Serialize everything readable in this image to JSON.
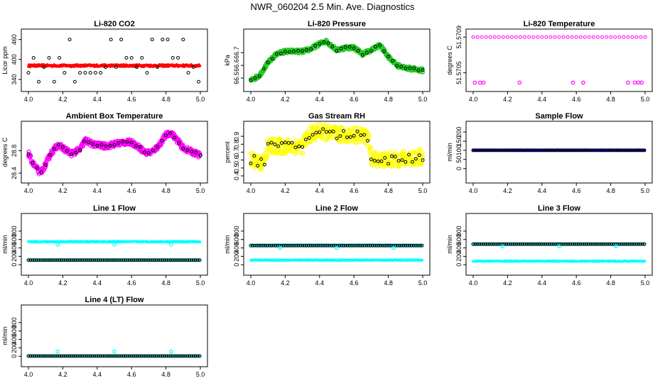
{
  "page": {
    "title": "NWR_060204  2.5 Min. Ave. Diagnostics"
  },
  "colors": {
    "red": "#ff0000",
    "green": "#22cc22",
    "magenta": "#ff00ff",
    "yellow": "#ffff00",
    "blue": "#0000ff",
    "cyan": "#00ffff",
    "black": "#000000"
  },
  "chart_data": [
    {
      "id": "co2",
      "type": "scatter",
      "title": "Li-820 CO2",
      "ylabel": "Licor ppm",
      "xlim": [
        4.0,
        5.0
      ],
      "ylim": [
        325,
        470
      ],
      "xticks": [
        4.0,
        4.2,
        4.4,
        4.6,
        4.8,
        5.0
      ],
      "xtick_labels": [
        "4.0",
        "4.2",
        "4.4",
        "4.6",
        "4.8",
        "5.0"
      ],
      "yticks": [
        340,
        400,
        460
      ],
      "ytick_labels": [
        "340",
        "400",
        "460"
      ],
      "series": [
        {
          "name": "raw",
          "color": "red",
          "style": "band",
          "min": 378,
          "max": 385
        },
        {
          "name": "avg",
          "color": "black",
          "style": "scatter",
          "levels": [
            333,
            360,
            377,
            405,
            460
          ],
          "step": 0.03
        }
      ]
    },
    {
      "id": "pressure",
      "type": "scatter",
      "title": "Li-820 Pressure",
      "ylabel": "kPa",
      "xlim": [
        4.0,
        5.0
      ],
      "ylim": [
        66.45,
        66.83
      ],
      "xticks": [
        4.0,
        4.2,
        4.4,
        4.6,
        4.8,
        5.0
      ],
      "xtick_labels": [
        "4.0",
        "4.2",
        "4.4",
        "4.6",
        "4.8",
        "5.0"
      ],
      "yticks": [
        66.5,
        66.6,
        66.7
      ],
      "ytick_labels": [
        "66.5",
        "66.6",
        "66.7"
      ],
      "series": [
        {
          "name": "raw",
          "color": "green",
          "style": "trace",
          "spread": 0.015,
          "x": [
            4.0,
            4.05,
            4.1,
            4.15,
            4.2,
            4.3,
            4.35,
            4.4,
            4.44,
            4.5,
            4.55,
            4.6,
            4.65,
            4.7,
            4.75,
            4.8,
            4.85,
            4.9,
            4.95,
            5.0
          ],
          "y": [
            66.48,
            66.52,
            66.62,
            66.69,
            66.71,
            66.71,
            66.73,
            66.77,
            66.79,
            66.72,
            66.74,
            66.74,
            66.69,
            66.72,
            66.76,
            66.67,
            66.6,
            66.58,
            66.57,
            66.56
          ]
        },
        {
          "name": "avg",
          "color": "black",
          "style": "sampled",
          "step": 0.025
        }
      ]
    },
    {
      "id": "licor_temp",
      "type": "scatter",
      "title": "Li-820 Temperature",
      "ylabel": "degrees C",
      "xlim": [
        4.0,
        5.0
      ],
      "ylim": [
        51.57037,
        51.57091
      ],
      "xticks": [
        4.0,
        4.2,
        4.4,
        4.6,
        4.8,
        5.0
      ],
      "xtick_labels": [
        "4.0",
        "4.2",
        "4.4",
        "4.6",
        "4.8",
        "5.0"
      ],
      "yticks": [
        51.5705,
        51.5709
      ],
      "ytick_labels": [
        "51.5705",
        "51.5709"
      ],
      "series": [
        {
          "name": "high",
          "color": "magenta",
          "style": "scatter",
          "levels": [
            51.5709
          ],
          "step": 0.025
        },
        {
          "name": "low",
          "color": "magenta",
          "style": "points",
          "y": 51.57039,
          "x": [
            4.01,
            4.04,
            4.06,
            4.27,
            4.58,
            4.64,
            4.9,
            4.94,
            4.96,
            4.98
          ]
        }
      ]
    },
    {
      "id": "box_temp",
      "type": "scatter",
      "title": "Ambient Box Temperature",
      "ylabel": "degrees C",
      "xlim": [
        4.0,
        5.0
      ],
      "ylim": [
        28.35,
        29.2
      ],
      "xticks": [
        4.0,
        4.2,
        4.4,
        4.6,
        4.8,
        5.0
      ],
      "xtick_labels": [
        "4.0",
        "4.2",
        "4.4",
        "4.6",
        "4.8",
        "5.0"
      ],
      "yticks": [
        28.4,
        28.8
      ],
      "ytick_labels": [
        "28.4",
        "28.8"
      ],
      "series": [
        {
          "name": "raw",
          "color": "magenta",
          "style": "trace",
          "spread": 0.05,
          "x": [
            4.0,
            4.03,
            4.07,
            4.1,
            4.13,
            4.17,
            4.2,
            4.25,
            4.3,
            4.33,
            4.37,
            4.45,
            4.5,
            4.55,
            4.6,
            4.65,
            4.68,
            4.72,
            4.76,
            4.8,
            4.83,
            4.87,
            4.9,
            4.95,
            5.0
          ],
          "y": [
            28.75,
            28.55,
            28.4,
            28.55,
            28.75,
            28.9,
            28.85,
            28.75,
            28.82,
            28.99,
            28.92,
            28.88,
            28.92,
            28.95,
            28.95,
            28.85,
            28.76,
            28.78,
            28.9,
            29.08,
            29.12,
            28.97,
            28.85,
            28.78,
            28.72
          ]
        },
        {
          "name": "avg",
          "color": "black",
          "style": "sampled",
          "step": 0.025
        }
      ]
    },
    {
      "id": "rh",
      "type": "scatter",
      "title": "Gas Stream RH",
      "ylabel": "percent",
      "xlim": [
        4.0,
        5.0
      ],
      "ylim": [
        0.4,
        1.0
      ],
      "xticks": [
        4.0,
        4.2,
        4.4,
        4.6,
        4.8,
        5.0
      ],
      "xtick_labels": [
        "4.0",
        "4.2",
        "4.4",
        "4.6",
        "4.8",
        "5.0"
      ],
      "yticks": [
        0.4,
        0.5,
        0.6,
        0.7,
        0.8,
        0.9
      ],
      "ytick_labels": [
        "0.4",
        "0.5",
        "0.6",
        "0.7",
        "0.8",
        "0.9"
      ],
      "series": [
        {
          "name": "raw",
          "color": "yellow",
          "style": "trace",
          "spread": 0.1,
          "x": [
            4.0,
            4.03,
            4.07,
            4.09,
            4.1,
            4.2,
            4.3,
            4.34,
            4.4,
            4.5,
            4.6,
            4.68,
            4.7,
            4.8,
            4.9,
            5.0
          ],
          "y": [
            0.6,
            0.6,
            0.55,
            0.65,
            0.78,
            0.77,
            0.78,
            0.92,
            0.96,
            0.92,
            0.92,
            0.9,
            0.62,
            0.6,
            0.62,
            0.64
          ]
        },
        {
          "name": "avg",
          "color": "black",
          "style": "sampled",
          "step": 0.02,
          "jitter": 0.04
        }
      ]
    },
    {
      "id": "sample_flow",
      "type": "scatter",
      "title": "Sample Flow",
      "ylabel": "ml/min",
      "xlim": [
        4.0,
        5.0
      ],
      "ylim": [
        -40,
        220
      ],
      "xticks": [
        4.0,
        4.2,
        4.4,
        4.6,
        4.8,
        5.0
      ],
      "xtick_labels": [
        "4.0",
        "4.2",
        "4.4",
        "4.6",
        "4.8",
        "5.0"
      ],
      "yticks": [
        0,
        50,
        100,
        150,
        200
      ],
      "ytick_labels": [
        "0",
        "50",
        "100",
        "150",
        "200"
      ],
      "series": [
        {
          "name": "raw",
          "color": "blue",
          "style": "band",
          "min": 98,
          "max": 103
        },
        {
          "name": "avg",
          "color": "black",
          "style": "scatter",
          "levels": [
            100
          ],
          "step": 0.012
        }
      ]
    },
    {
      "id": "line1",
      "type": "scatter",
      "title": "Line 1 Flow",
      "ylabel": "ml/min",
      "xlim": [
        4.0,
        5.0
      ],
      "ylim": [
        -80,
        1050
      ],
      "xticks": [
        4.0,
        4.2,
        4.4,
        4.6,
        4.8,
        5.0
      ],
      "xtick_labels": [
        "4.0",
        "4.2",
        "4.4",
        "4.6",
        "4.8",
        "5.0"
      ],
      "yticks": [
        0,
        200,
        400,
        600,
        800
      ],
      "ytick_labels": [
        "0",
        "200",
        "400",
        "600",
        "800"
      ],
      "series": [
        {
          "name": "raw-high",
          "color": "cyan",
          "style": "band",
          "min": 535,
          "max": 560
        },
        {
          "name": "raw-low",
          "color": "cyan",
          "style": "band",
          "min": 100,
          "max": 120
        },
        {
          "name": "avg",
          "color": "black",
          "style": "scatter",
          "levels": [
            110
          ],
          "step": 0.012
        },
        {
          "name": "outliers",
          "color": "cyan",
          "style": "points",
          "y": 480,
          "x": [
            4.17,
            4.5,
            4.83
          ]
        }
      ]
    },
    {
      "id": "line2",
      "type": "scatter",
      "title": "Line 2 Flow",
      "ylabel": "ml/min",
      "xlim": [
        4.0,
        5.0
      ],
      "ylim": [
        -80,
        1050
      ],
      "xticks": [
        4.0,
        4.2,
        4.4,
        4.6,
        4.8,
        5.0
      ],
      "xtick_labels": [
        "4.0",
        "4.2",
        "4.4",
        "4.6",
        "4.8",
        "5.0"
      ],
      "yticks": [
        0,
        200,
        400,
        600,
        800
      ],
      "ytick_labels": [
        "0",
        "200",
        "400",
        "600",
        "800"
      ],
      "series": [
        {
          "name": "raw-high",
          "color": "cyan",
          "style": "band",
          "min": 455,
          "max": 475
        },
        {
          "name": "raw-low",
          "color": "cyan",
          "style": "band",
          "min": 100,
          "max": 120
        },
        {
          "name": "avg",
          "color": "black",
          "style": "scatter",
          "levels": [
            455
          ],
          "step": 0.012
        },
        {
          "name": "outliers",
          "color": "cyan",
          "style": "points",
          "y": 400,
          "x": [
            4.17,
            4.5,
            4.83
          ]
        }
      ]
    },
    {
      "id": "line3",
      "type": "scatter",
      "title": "Line 3 Flow",
      "ylabel": "ml/min",
      "xlim": [
        4.0,
        5.0
      ],
      "ylim": [
        -80,
        1050
      ],
      "xticks": [
        4.0,
        4.2,
        4.4,
        4.6,
        4.8,
        5.0
      ],
      "xtick_labels": [
        "4.0",
        "4.2",
        "4.4",
        "4.6",
        "4.8",
        "5.0"
      ],
      "yticks": [
        0,
        200,
        400,
        600,
        800
      ],
      "ytick_labels": [
        "0",
        "200",
        "400",
        "600",
        "800"
      ],
      "series": [
        {
          "name": "raw-high",
          "color": "cyan",
          "style": "band",
          "min": 480,
          "max": 500
        },
        {
          "name": "raw-low",
          "color": "cyan",
          "style": "band",
          "min": 75,
          "max": 95
        },
        {
          "name": "avg",
          "color": "black",
          "style": "scatter",
          "levels": [
            490
          ],
          "step": 0.012
        },
        {
          "name": "outliers",
          "color": "cyan",
          "style": "points",
          "y": 440,
          "x": [
            4.17,
            4.5,
            4.83
          ]
        }
      ]
    },
    {
      "id": "line4",
      "type": "scatter",
      "title": "Line 4 (LT) Flow",
      "ylabel": "ml/min",
      "xlim": [
        4.0,
        5.0
      ],
      "ylim": [
        -80,
        1050
      ],
      "xticks": [
        4.0,
        4.2,
        4.4,
        4.6,
        4.8,
        5.0
      ],
      "xtick_labels": [
        "4.0",
        "4.2",
        "4.4",
        "4.6",
        "4.8",
        "5.0"
      ],
      "yticks": [
        0,
        200,
        400,
        600,
        800
      ],
      "ytick_labels": [
        "0",
        "200",
        "400",
        "600",
        "800"
      ],
      "series": [
        {
          "name": "raw",
          "color": "cyan",
          "style": "band",
          "min": 0,
          "max": 12
        },
        {
          "name": "avg",
          "color": "black",
          "style": "scatter",
          "levels": [
            5
          ],
          "step": 0.012
        },
        {
          "name": "outliers",
          "color": "cyan",
          "style": "points",
          "y": 110,
          "x": [
            4.17,
            4.5,
            4.83
          ]
        }
      ]
    }
  ]
}
